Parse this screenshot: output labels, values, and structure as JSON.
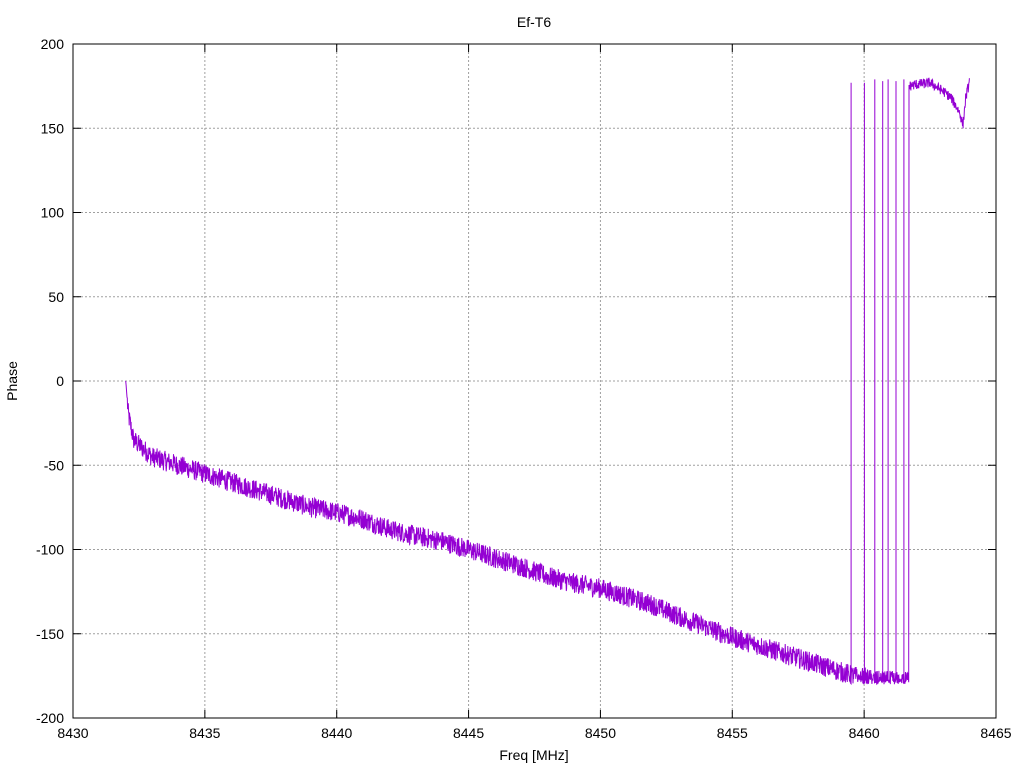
{
  "chart_data": {
    "type": "line",
    "title": "Ef-T6",
    "xlabel": "Freq [MHz]",
    "ylabel": "Phase",
    "xlim": [
      8430,
      8465
    ],
    "ylim": [
      -200,
      200
    ],
    "xticks": [
      8430,
      8435,
      8440,
      8445,
      8450,
      8455,
      8460,
      8465
    ],
    "yticks": [
      -200,
      -150,
      -100,
      -50,
      0,
      50,
      100,
      150,
      200
    ],
    "grid": true,
    "line_color": "#9400d3",
    "series": [
      {
        "trend": [
          [
            8432.0,
            0
          ],
          [
            8432.1,
            -20
          ],
          [
            8432.3,
            -35
          ],
          [
            8433.0,
            -45
          ],
          [
            8434.0,
            -50
          ],
          [
            8435.0,
            -55
          ],
          [
            8436.0,
            -60
          ],
          [
            8437.0,
            -65
          ],
          [
            8438.0,
            -70
          ],
          [
            8439.0,
            -75
          ],
          [
            8440.0,
            -78
          ],
          [
            8441.0,
            -82
          ],
          [
            8442.0,
            -88
          ],
          [
            8443.0,
            -92
          ],
          [
            8444.0,
            -95
          ],
          [
            8445.0,
            -100
          ],
          [
            8446.0,
            -105
          ],
          [
            8447.0,
            -110
          ],
          [
            8448.0,
            -116
          ],
          [
            8449.0,
            -120
          ],
          [
            8450.0,
            -123
          ],
          [
            8451.0,
            -128
          ],
          [
            8452.0,
            -133
          ],
          [
            8453.0,
            -140
          ],
          [
            8454.0,
            -146
          ],
          [
            8455.0,
            -152
          ],
          [
            8456.0,
            -157
          ],
          [
            8457.0,
            -162
          ],
          [
            8458.0,
            -167
          ],
          [
            8459.0,
            -172
          ],
          [
            8459.6,
            -175
          ],
          [
            8460.5,
            -178
          ],
          [
            8461.7,
            -178
          ]
        ],
        "spikes": [
          [
            8459.5,
            177
          ],
          [
            8460.0,
            177
          ],
          [
            8460.4,
            179
          ],
          [
            8460.7,
            178
          ],
          [
            8460.9,
            179
          ],
          [
            8461.2,
            178
          ],
          [
            8461.5,
            179
          ],
          [
            8461.7,
            178
          ]
        ],
        "segment2": [
          [
            8461.7,
            175
          ],
          [
            8462.0,
            176
          ],
          [
            8462.5,
            177
          ],
          [
            8463.0,
            172
          ],
          [
            8463.3,
            168
          ],
          [
            8463.6,
            160
          ],
          [
            8463.75,
            152
          ],
          [
            8463.85,
            168
          ],
          [
            8464.0,
            178
          ]
        ]
      }
    ]
  }
}
